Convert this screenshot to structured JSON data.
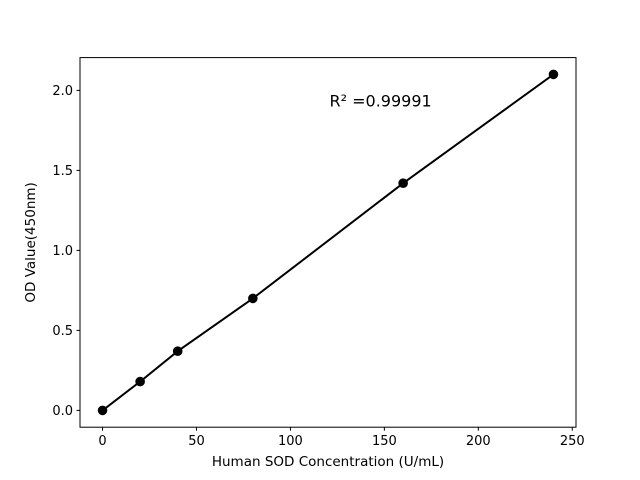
{
  "figure": {
    "background": "#ffffff",
    "foreground": "#000000"
  },
  "chart_data": {
    "type": "line",
    "x": [
      0,
      20,
      40,
      80,
      160,
      240
    ],
    "series": [
      {
        "name": "sod-standard-curve",
        "values": [
          0.0,
          0.18,
          0.37,
          0.7,
          1.42,
          2.1
        ],
        "color": "#000000",
        "marker": "circle",
        "marker_color": "#000000"
      }
    ],
    "title": "",
    "xlabel": "Human SOD Concentration (U/mL)",
    "ylabel": "OD Value(450nm)",
    "xlim": [
      -12,
      252
    ],
    "ylim": [
      -0.105,
      2.205
    ],
    "xticks": {
      "values": [
        0,
        50,
        100,
        150,
        200,
        250
      ],
      "labels": [
        "0",
        "50",
        "100",
        "150",
        "200",
        "250"
      ]
    },
    "yticks": {
      "values": [
        0.0,
        0.5,
        1.0,
        1.5,
        2.0
      ],
      "labels": [
        "0.0",
        "0.5",
        "1.0",
        "1.5",
        "2.0"
      ]
    },
    "grid": false,
    "legend": "none",
    "annotation": {
      "text": "R² =0.99991",
      "x": 148,
      "y": 1.9
    }
  }
}
